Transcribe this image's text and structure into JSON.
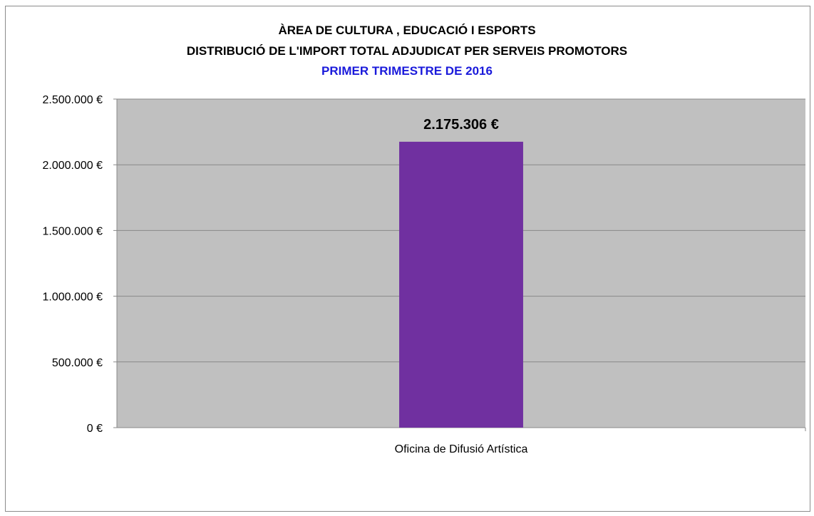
{
  "chart_data": {
    "type": "bar",
    "title": "ÀREA DE CULTURA , EDUCACIÓ I ESPORTS",
    "subtitle": "DISTRIBUCIÓ DE L'IMPORT TOTAL ADJUDICAT PER SERVEIS PROMOTORS",
    "period": "PRIMER TRIMESTRE DE 2016",
    "categories": [
      "Oficina de Difusió Artística"
    ],
    "values": [
      2175306
    ],
    "data_labels": [
      "2.175.306 €"
    ],
    "ylim": [
      0,
      2500000
    ],
    "yticks": [
      0,
      500000,
      1000000,
      1500000,
      2000000,
      2500000
    ],
    "ytick_labels": [
      "0 €",
      "500.000 €",
      "1.000.000 €",
      "1.500.000 €",
      "2.000.000 €",
      "2.500.000 €"
    ],
    "xlabel": "",
    "ylabel": "",
    "grid": true,
    "legend": "none",
    "colors": {
      "bar": "#7030a0",
      "plot_background": "#c0c0c0",
      "gridline": "#888888",
      "period_text": "#1a1adb"
    }
  }
}
